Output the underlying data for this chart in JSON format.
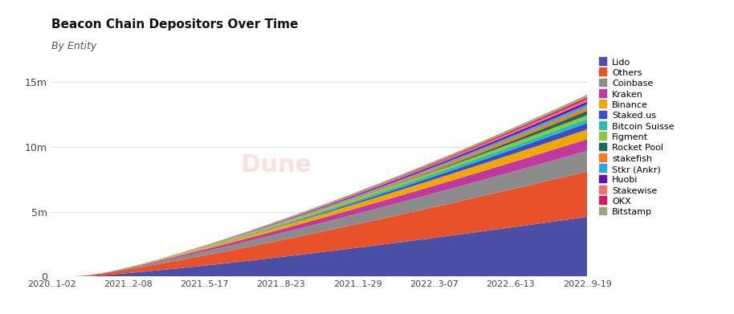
{
  "title": "Beacon Chain Depositors Over Time",
  "subtitle": "By Entity",
  "x_labels": [
    "2020..1-02",
    "2021..2-08",
    "2021..5-17",
    "2021..8-23",
    "2021..1-29",
    "2022..3-07",
    "2022..6-13",
    "2022..9-19"
  ],
  "ylim": [
    0,
    16500000
  ],
  "yticks": [
    0,
    5000000,
    10000000,
    15000000
  ],
  "ytick_labels": [
    "0",
    "5m",
    "10m",
    "15m"
  ],
  "background_color": "#ffffff",
  "watermark": "Dune",
  "entities_bottom_to_top": [
    {
      "name": "Lido",
      "color": "#4b4fa6",
      "final": 4600000,
      "delay": 0.06,
      "steepness": 1.2
    },
    {
      "name": "Others",
      "color": "#e8522a",
      "final": 3500000,
      "delay": 0.04,
      "steepness": 1.1
    },
    {
      "name": "Coinbase",
      "color": "#8c8c8c",
      "final": 1600000,
      "delay": 0.08,
      "steepness": 1.1
    },
    {
      "name": "Kraken",
      "color": "#c0399e",
      "final": 900000,
      "delay": 0.1,
      "steepness": 1.1
    },
    {
      "name": "Binance",
      "color": "#f0a800",
      "final": 750000,
      "delay": 0.12,
      "steepness": 1.1
    },
    {
      "name": "Staked.us",
      "color": "#3b4cca",
      "final": 500000,
      "delay": 0.3,
      "steepness": 1.5
    },
    {
      "name": "Bitcoin Suisse",
      "color": "#2bbcb0",
      "final": 320000,
      "delay": 0.12,
      "steepness": 1.1
    },
    {
      "name": "Figment",
      "color": "#8dc63f",
      "final": 280000,
      "delay": 0.15,
      "steepness": 1.2
    },
    {
      "name": "Rocket Pool",
      "color": "#1a6b57",
      "final": 350000,
      "delay": 0.5,
      "steepness": 2.0
    },
    {
      "name": "stakefish",
      "color": "#f47b20",
      "final": 280000,
      "delay": 0.14,
      "steepness": 1.1
    },
    {
      "name": "Stkr (Ankr)",
      "color": "#29abe2",
      "final": 220000,
      "delay": 0.2,
      "steepness": 1.3
    },
    {
      "name": "Huobi",
      "color": "#6a0dad",
      "final": 200000,
      "delay": 0.18,
      "steepness": 1.2
    },
    {
      "name": "Stakewise",
      "color": "#f26c6c",
      "final": 180000,
      "delay": 0.22,
      "steepness": 1.3
    },
    {
      "name": "OKX",
      "color": "#d81b60",
      "final": 160000,
      "delay": 0.28,
      "steepness": 1.5
    },
    {
      "name": "Bitstamp",
      "color": "#a0a878",
      "final": 200000,
      "delay": 0.1,
      "steepness": 1.1
    }
  ],
  "legend_order": [
    "Lido",
    "Others",
    "Coinbase",
    "Kraken",
    "Binance",
    "Staked.us",
    "Bitcoin Suisse",
    "Figment",
    "Rocket Pool",
    "stakefish",
    "Stkr (Ankr)",
    "Huobi",
    "Stakewise",
    "OKX",
    "Bitstamp"
  ],
  "legend_colors": {
    "Lido": "#4b4fa6",
    "Others": "#e8522a",
    "Coinbase": "#8c8c8c",
    "Kraken": "#c0399e",
    "Binance": "#f0a800",
    "Staked.us": "#3b4cca",
    "Bitcoin Suisse": "#2bbcb0",
    "Figment": "#8dc63f",
    "Rocket Pool": "#1a6b57",
    "stakefish": "#f47b20",
    "Stkr (Ankr)": "#29abe2",
    "Huobi": "#6a0dad",
    "Stakewise": "#f26c6c",
    "OKX": "#d81b60",
    "Bitstamp": "#a0a878"
  },
  "n_points": 200
}
